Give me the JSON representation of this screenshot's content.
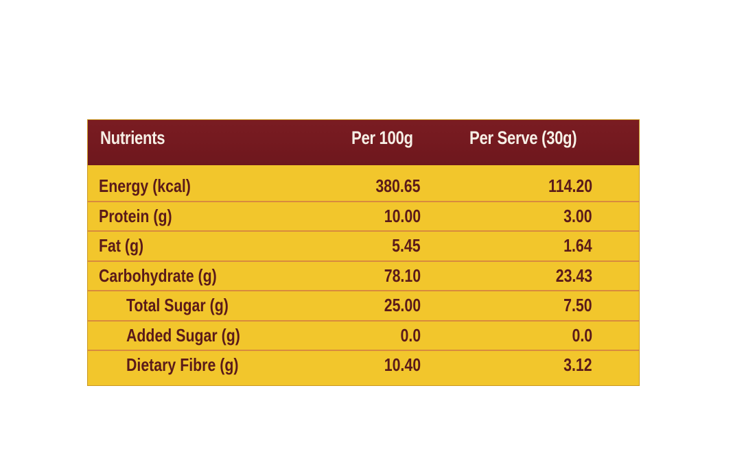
{
  "table": {
    "headers": {
      "nutrients": "Nutrients",
      "per_100g": "Per 100g",
      "per_serve": "Per Serve (30g)"
    },
    "rows": [
      {
        "label": "Energy (kcal)",
        "per_100g": "380.65",
        "per_serve": "114.20",
        "indent": 0
      },
      {
        "label": "Protein (g)",
        "per_100g": "10.00",
        "per_serve": "3.00",
        "indent": 0
      },
      {
        "label": "Fat (g)",
        "per_100g": "5.45",
        "per_serve": "1.64",
        "indent": 0
      },
      {
        "label": "Carbohydrate (g)",
        "per_100g": "78.10",
        "per_serve": "23.43",
        "indent": 0
      },
      {
        "label": "Total Sugar (g)",
        "per_100g": "25.00",
        "per_serve": "7.50",
        "indent": 1
      },
      {
        "label": "Added Sugar (g)",
        "per_100g": "0.0",
        "per_serve": "0.0",
        "indent": 1
      },
      {
        "label": "Dietary Fibre (g)",
        "per_100g": "10.40",
        "per_serve": "3.12",
        "indent": 1
      }
    ]
  },
  "colors": {
    "header_bg": "#7a1c22",
    "body_bg": "#f2c62c",
    "text_dark": "#5a1a1a",
    "row_separator": "#d88a3e"
  }
}
